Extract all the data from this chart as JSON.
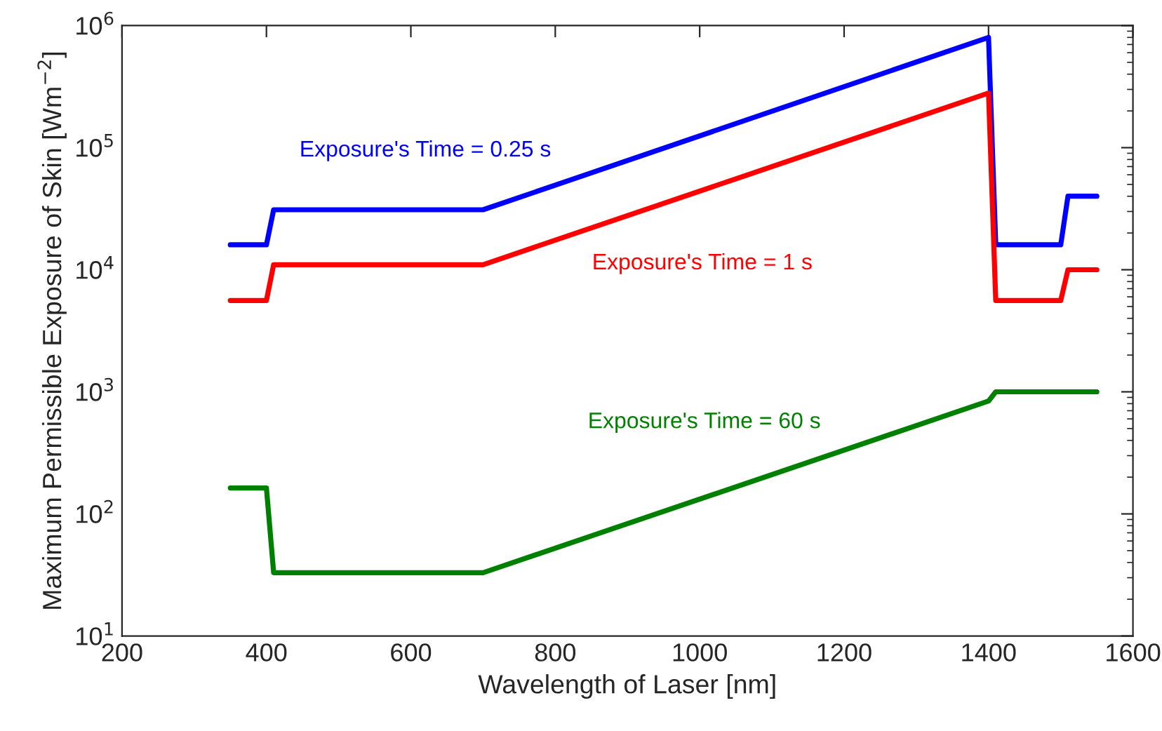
{
  "chart_data": {
    "type": "line",
    "xlabel": "Wavelength of Laser [nm]",
    "ylabel": "Maximum Permissible Exposure of Skin [Wm$^{−2}$]",
    "log": "y",
    "grid": false,
    "legend": false,
    "marker": "none",
    "line_style": "solid",
    "xlim": [
      200,
      1600
    ],
    "xticks": [
      200,
      400,
      600,
      800,
      1000,
      1200,
      1400,
      1600
    ],
    "ylim": [
      10,
      1000000
    ],
    "yticks": [
      {
        "value": 10,
        "label": "10$^{1}$"
      },
      {
        "value": 100,
        "label": "10$^{2}$"
      },
      {
        "value": 1000,
        "label": "10$^{3}$"
      },
      {
        "value": 10000,
        "label": "10$^{4}$"
      },
      {
        "value": 100000,
        "label": "10$^{5}$"
      },
      {
        "value": 1000000,
        "label": "10$^{6}$"
      }
    ],
    "series": [
      {
        "name": "Exposure's Time = 0.25 s",
        "color": "#0000ff",
        "x": [
          350,
          400,
          410,
          700,
          1400,
          1410,
          1500,
          1510,
          1550
        ],
        "values": [
          16000,
          16000,
          31000,
          31000,
          800000,
          16000,
          16000,
          40000,
          40000
        ]
      },
      {
        "name": "Exposure's Time = 1 s",
        "color": "#ff0000",
        "x": [
          350,
          400,
          410,
          700,
          1400,
          1410,
          1500,
          1510,
          1550
        ],
        "values": [
          5600,
          5600,
          11000,
          11000,
          280000,
          5600,
          5600,
          10000,
          10000
        ]
      },
      {
        "name": "Exposure's Time = 60 s",
        "color": "#008000",
        "x": [
          350,
          400,
          410,
          700,
          1400,
          1410,
          1550
        ],
        "values": [
          163,
          163,
          33,
          33,
          840,
          1000,
          1000
        ]
      }
    ]
  }
}
